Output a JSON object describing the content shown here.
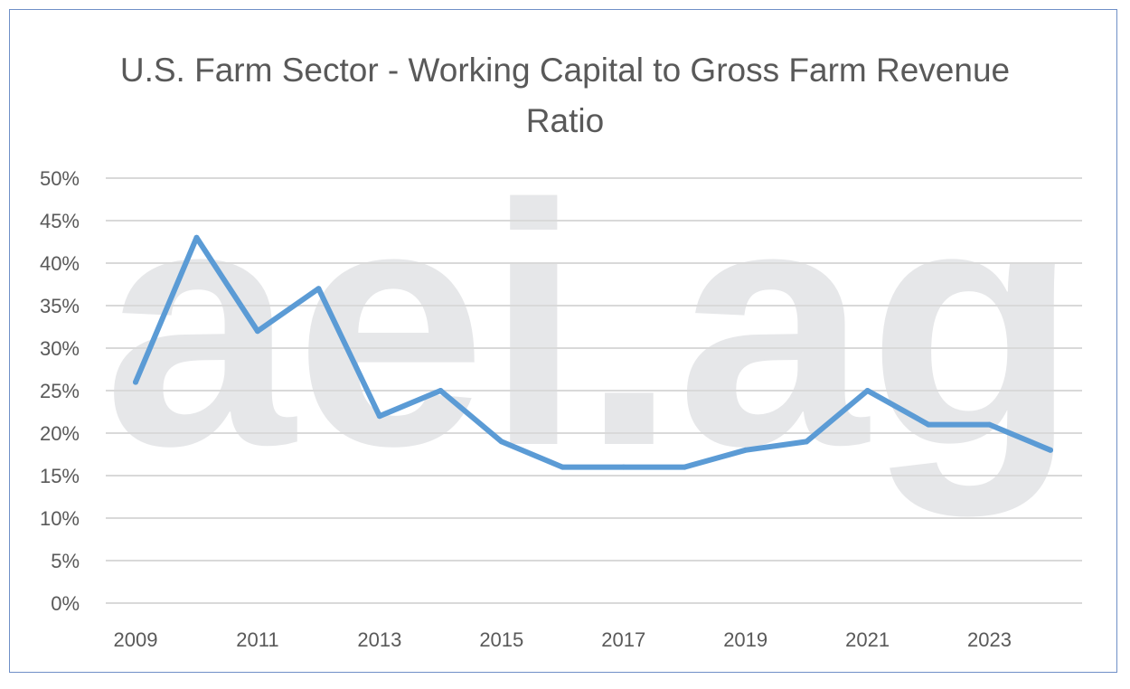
{
  "chart_data": {
    "type": "line",
    "title": "U.S. Farm Sector - Working Capital to Gross Farm Revenue Ratio",
    "watermark": "aei.ag",
    "xlabel": "",
    "ylabel": "",
    "x": [
      2009,
      2010,
      2011,
      2012,
      2013,
      2014,
      2015,
      2016,
      2017,
      2018,
      2019,
      2020,
      2021,
      2022,
      2023,
      2024
    ],
    "x_tick_labels": [
      "2009",
      "2011",
      "2013",
      "2015",
      "2017",
      "2019",
      "2021",
      "2023"
    ],
    "y_tick_labels": [
      "0%",
      "5%",
      "10%",
      "15%",
      "20%",
      "25%",
      "30%",
      "35%",
      "40%",
      "45%",
      "50%"
    ],
    "ylim": [
      0,
      50
    ],
    "grid": true,
    "legend": "none",
    "series": [
      {
        "values": [
          26,
          43,
          32,
          37,
          22,
          25,
          19,
          16,
          16,
          16,
          18,
          19,
          25,
          21,
          21,
          18
        ],
        "color": "#5b9bd5"
      }
    ]
  }
}
